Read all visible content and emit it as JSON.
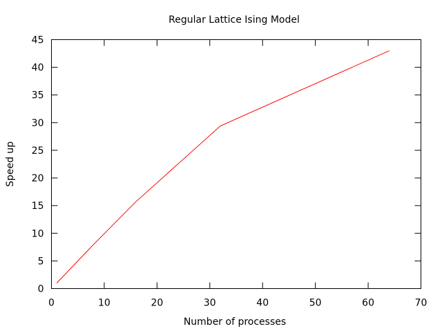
{
  "chart_data": {
    "type": "line",
    "title": "Regular Lattice Ising Model",
    "xlabel": "Number of processes",
    "ylabel": "Speed up",
    "xlim": [
      0,
      70
    ],
    "ylim": [
      0,
      45
    ],
    "xticks": [
      0,
      10,
      20,
      30,
      40,
      50,
      60,
      70
    ],
    "yticks": [
      0,
      5,
      10,
      15,
      20,
      25,
      30,
      35,
      40,
      45
    ],
    "grid": false,
    "legend": "none",
    "series": [
      {
        "color": "#ff0000",
        "x": [
          1,
          8,
          16,
          32,
          64
        ],
        "y": [
          1,
          8,
          15.7,
          29.4,
          43
        ]
      }
    ]
  }
}
